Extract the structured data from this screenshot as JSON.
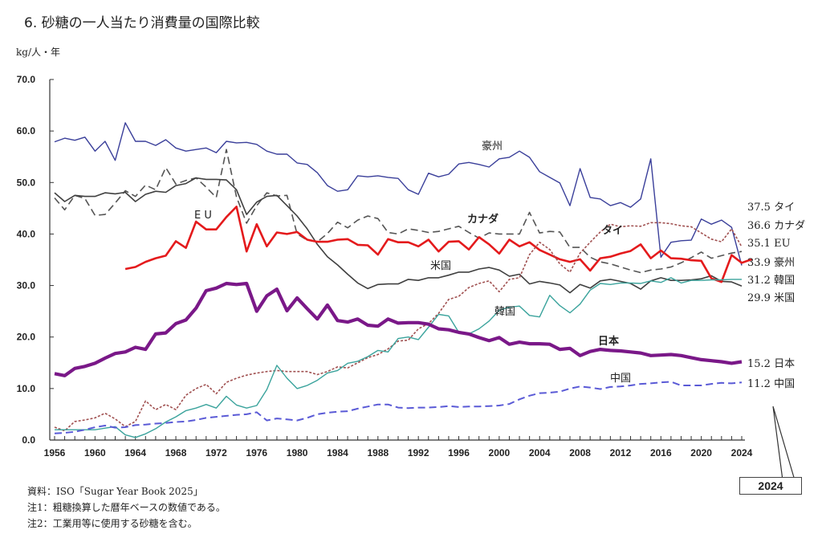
{
  "page": {
    "title": "6. 砂糖の一人当たり消費量の国際比較",
    "unit": "kg/人・年",
    "notes": [
      "資料：ISO「Sugar Year Book 2025」",
      "注1：粗糖換算した暦年ベースの数値である。",
      "注2：工業用等に使用する砂糖を含む。"
    ],
    "callout": "2024"
  },
  "chart_data": {
    "type": "line",
    "title": "6. 砂糖の一人当たり消費量の国際比較",
    "ylabel": "kg/人・年",
    "xlabel": "",
    "ylim": [
      0,
      70
    ],
    "xlim": [
      1956,
      2024
    ],
    "yticks": [
      "0.0",
      "10.0",
      "20.0",
      "30.0",
      "40.0",
      "50.0",
      "60.0",
      "70.0"
    ],
    "xticks": [
      "1956",
      "1960",
      "1964",
      "1968",
      "1972",
      "1976",
      "1980",
      "1984",
      "1988",
      "1992",
      "1996",
      "2000",
      "2004",
      "2008",
      "2012",
      "2016",
      "2020",
      "2024"
    ],
    "grid": false,
    "series": [
      {
        "name": "豪州",
        "inline_label": "豪州",
        "end_label": "33.9 豪州",
        "color": "#3a3f9a",
        "style": "solid",
        "width": 1.4,
        "start": 1956,
        "values": [
          57.9,
          58.6,
          58.2,
          58.8,
          56.1,
          58.0,
          54.3,
          61.6,
          58.0,
          58.0,
          57.2,
          58.3,
          56.7,
          56.1,
          56.4,
          56.7,
          55.8,
          58.0,
          57.7,
          57.8,
          57.4,
          56.1,
          55.5,
          55.5,
          53.8,
          53.5,
          51.9,
          49.4,
          48.3,
          48.6,
          51.3,
          51.1,
          51.3,
          51.0,
          50.8,
          48.6,
          47.7,
          51.8,
          51.1,
          51.6,
          53.6,
          53.9,
          53.5,
          53.0,
          54.6,
          54.9,
          56.1,
          54.9,
          52.1,
          51.0,
          49.9,
          45.5,
          52.7,
          47.1,
          46.8,
          45.5,
          46.1,
          45.2,
          46.8,
          54.6,
          35.5,
          38.4,
          38.7,
          38.8,
          42.9,
          41.9,
          42.7,
          41.3,
          33.9
        ]
      },
      {
        "name": "カナダ",
        "inline_label": "カナダ",
        "end_label": "36.6 カナダ",
        "color": "#555555",
        "style": "dashed",
        "width": 1.6,
        "start": 1956,
        "values": [
          47.0,
          44.7,
          47.5,
          46.9,
          43.6,
          43.8,
          46.0,
          48.4,
          47.3,
          49.5,
          48.6,
          52.9,
          49.7,
          50.4,
          50.9,
          49.1,
          47.1,
          56.4,
          47.2,
          42.1,
          45.5,
          48.0,
          47.4,
          47.5,
          40.0,
          38.8,
          38.5,
          40.1,
          42.3,
          41.2,
          42.7,
          43.5,
          43.0,
          40.3,
          40.0,
          41.0,
          40.7,
          40.3,
          40.5,
          41.0,
          41.5,
          40.3,
          39.2,
          40.2,
          40.0,
          40.0,
          40.0,
          44.2,
          40.2,
          40.5,
          40.4,
          37.4,
          37.4,
          35.5,
          34.6,
          34.2,
          33.6,
          33.0,
          32.5,
          33.0,
          33.2,
          33.6,
          34.4,
          35.4,
          36.5,
          35.3,
          35.8,
          36.3,
          36.6
        ]
      },
      {
        "name": "米国",
        "inline_label": "米国",
        "end_label": "29.9 米国",
        "color": "#404040",
        "style": "solid",
        "width": 1.6,
        "start": 1956,
        "values": [
          48.0,
          46.3,
          47.5,
          47.3,
          47.3,
          48.0,
          47.8,
          48.1,
          46.3,
          47.7,
          48.3,
          48.1,
          49.4,
          49.8,
          50.9,
          50.6,
          50.6,
          50.5,
          48.6,
          43.8,
          46.2,
          47.3,
          47.5,
          45.5,
          43.5,
          41.0,
          38.0,
          35.6,
          34.0,
          32.2,
          30.5,
          29.4,
          30.2,
          30.3,
          30.3,
          31.2,
          31.0,
          31.5,
          31.5,
          32.0,
          32.6,
          32.6,
          33.2,
          33.5,
          33.0,
          31.8,
          32.2,
          30.3,
          30.8,
          30.5,
          30.1,
          28.6,
          30.2,
          29.5,
          30.9,
          31.2,
          30.8,
          30.4,
          29.3,
          30.9,
          31.5,
          31.0,
          31.0,
          31.1,
          31.3,
          31.9,
          30.8,
          30.7,
          29.9
        ]
      },
      {
        "name": "EU",
        "inline_label": "E U",
        "end_label": "35.1 EU",
        "color": "#e41a1c",
        "style": "solid",
        "width": 2.6,
        "start": 1963,
        "values": [
          33.2,
          33.6,
          34.6,
          35.3,
          35.8,
          38.6,
          37.3,
          42.4,
          40.9,
          40.9,
          43.3,
          45.3,
          36.6,
          41.9,
          37.6,
          40.3,
          40.0,
          40.4,
          38.9,
          38.5,
          38.5,
          38.9,
          39.0,
          37.9,
          37.8,
          36.0,
          39.0,
          38.4,
          38.4,
          37.6,
          38.9,
          36.6,
          38.5,
          38.6,
          37.0,
          39.4,
          38.0,
          36.2,
          38.9,
          37.6,
          38.4,
          36.9,
          36.0,
          35.1,
          34.6,
          35.1,
          32.9,
          35.3,
          35.6,
          36.2,
          36.7,
          38.0,
          35.3,
          36.8,
          35.3,
          35.2,
          34.9,
          34.8,
          31.4,
          30.7,
          35.9,
          34.4,
          35.1
        ]
      },
      {
        "name": "タイ",
        "inline_label": "タイ",
        "end_label": "37.5 タイ",
        "color": "#a05050",
        "style": "dotted",
        "width": 1.6,
        "start": 1956,
        "values": [
          2.5,
          1.8,
          3.6,
          3.9,
          4.3,
          5.2,
          4.1,
          2.6,
          3.6,
          7.6,
          5.9,
          6.9,
          5.9,
          8.7,
          10.0,
          10.8,
          9.0,
          11.2,
          12.0,
          12.6,
          13.0,
          13.3,
          13.5,
          13.3,
          13.3,
          13.3,
          12.7,
          13.3,
          14.2,
          14.0,
          15.0,
          16.0,
          16.6,
          17.7,
          19.2,
          19.4,
          21.6,
          22.6,
          24.6,
          27.3,
          27.9,
          29.6,
          30.4,
          30.9,
          28.8,
          31.2,
          31.5,
          36.0,
          38.4,
          37.0,
          34.2,
          32.6,
          36.3,
          38.4,
          40.4,
          41.9,
          41.4,
          41.6,
          41.5,
          42.2,
          42.2,
          42.0,
          41.6,
          41.4,
          40.2,
          39.0,
          38.5,
          41.0,
          37.5
        ]
      },
      {
        "name": "韓国",
        "inline_label": "韓国",
        "end_label": "31.2 韓国",
        "color": "#3aa39c",
        "style": "solid",
        "width": 1.4,
        "start": 1956,
        "values": [
          2.0,
          2.0,
          2.0,
          2.0,
          2.0,
          2.3,
          2.6,
          1.0,
          0.5,
          1.2,
          2.2,
          3.5,
          4.5,
          5.7,
          6.2,
          6.9,
          6.2,
          8.5,
          6.8,
          6.2,
          6.7,
          9.8,
          14.5,
          12.0,
          10.0,
          10.6,
          11.6,
          13.0,
          13.5,
          14.9,
          15.3,
          16.2,
          17.4,
          17.1,
          19.7,
          20.0,
          19.5,
          21.9,
          24.4,
          24.1,
          20.9,
          20.6,
          21.6,
          23.1,
          25.2,
          25.8,
          26.0,
          24.2,
          23.9,
          28.1,
          26.1,
          24.7,
          26.4,
          29.1,
          30.4,
          30.2,
          30.5,
          30.5,
          30.4,
          30.9,
          30.6,
          31.5,
          30.5,
          31.0,
          31.0,
          31.1,
          31.1,
          31.2,
          31.2
        ]
      },
      {
        "name": "日本",
        "inline_label": "日本",
        "end_label": "15.2 日本",
        "color": "#7a1888",
        "style": "solid",
        "width": 4.2,
        "start": 1956,
        "values": [
          12.9,
          12.5,
          13.9,
          14.3,
          14.9,
          15.9,
          16.8,
          17.1,
          18.0,
          17.6,
          20.6,
          20.8,
          22.6,
          23.3,
          25.6,
          29.0,
          29.5,
          30.4,
          30.2,
          30.4,
          25.0,
          28.0,
          29.3,
          25.1,
          27.6,
          25.5,
          23.5,
          26.2,
          23.2,
          22.9,
          23.5,
          22.3,
          22.1,
          23.5,
          22.7,
          22.8,
          22.8,
          22.5,
          21.6,
          21.4,
          20.9,
          20.6,
          19.9,
          19.3,
          19.9,
          18.6,
          19.0,
          18.7,
          18.7,
          18.6,
          17.6,
          17.8,
          16.4,
          17.2,
          17.6,
          17.4,
          17.3,
          17.1,
          16.9,
          16.4,
          16.5,
          16.6,
          16.4,
          16.0,
          15.6,
          15.4,
          15.2,
          14.9,
          15.2
        ]
      },
      {
        "name": "中国",
        "inline_label": "中国",
        "end_label": "11.2 中国",
        "color": "#5a5ad6",
        "style": "dashed",
        "width": 2.0,
        "start": 1956,
        "values": [
          1.3,
          1.4,
          1.6,
          2.0,
          2.5,
          2.8,
          2.4,
          2.5,
          2.9,
          3.0,
          3.2,
          3.3,
          3.5,
          3.6,
          3.9,
          4.3,
          4.5,
          4.7,
          4.9,
          5.0,
          5.4,
          3.8,
          4.2,
          4.0,
          3.8,
          4.3,
          5.0,
          5.3,
          5.5,
          5.6,
          6.1,
          6.5,
          6.9,
          6.9,
          6.3,
          6.2,
          6.3,
          6.3,
          6.4,
          6.6,
          6.4,
          6.5,
          6.5,
          6.6,
          6.7,
          7.0,
          7.9,
          8.6,
          9.1,
          9.2,
          9.4,
          10.0,
          10.4,
          10.2,
          9.9,
          10.3,
          10.4,
          10.6,
          10.9,
          11.0,
          11.2,
          11.3,
          10.6,
          10.6,
          10.6,
          10.9,
          11.1,
          11.0,
          11.2
        ]
      }
    ]
  }
}
